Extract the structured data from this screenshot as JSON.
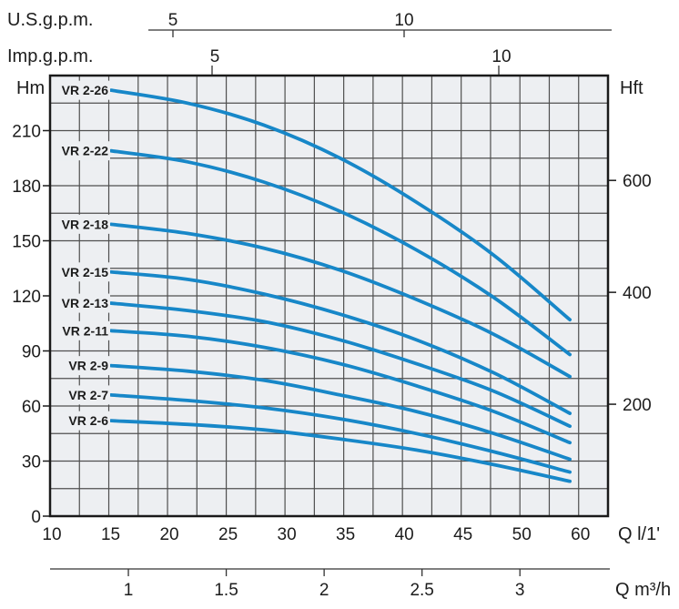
{
  "chart_data": {
    "type": "line",
    "title": "",
    "axes": {
      "us_gpm": {
        "label": "U.S.g.p.m.",
        "ticks": [
          5,
          10
        ]
      },
      "imp_gpm": {
        "label": "Imp.g.p.m.",
        "ticks": [
          5,
          10
        ]
      },
      "flow": {
        "label": "Q l/1'",
        "ticks": [
          10,
          15,
          20,
          25,
          30,
          35,
          40,
          45,
          50,
          60
        ]
      },
      "m3h": {
        "label": "Q m³/h",
        "ticks": [
          1,
          1.5,
          2,
          2.5,
          3
        ]
      },
      "left": {
        "label": "Hm",
        "ticks": [
          0,
          30,
          60,
          90,
          120,
          150,
          180,
          210
        ],
        "range": [
          0,
          240
        ],
        "grid_step_m": 15
      },
      "right": {
        "label": "Hft",
        "ticks": [
          200,
          400,
          600
        ]
      }
    },
    "grid": true,
    "legend_position": "on-curve-left",
    "q_lmin": [
      15.2,
      21.7,
      28.2,
      34.7,
      41.2,
      47.8,
      58.5
    ],
    "series": [
      {
        "name": "VR 2-26",
        "head_m": [
          232,
          225,
          213,
          195,
          171,
          142,
          107
        ]
      },
      {
        "name": "VR 2-22",
        "head_m": [
          199,
          193,
          182,
          166,
          145,
          119,
          88
        ]
      },
      {
        "name": "VR 2-18",
        "head_m": [
          159,
          154,
          146,
          134,
          118,
          99,
          76
        ]
      },
      {
        "name": "VR 2-15",
        "head_m": [
          133,
          129,
          121,
          110,
          96,
          78,
          56
        ]
      },
      {
        "name": "VR 2-13",
        "head_m": [
          116,
          112,
          106,
          96,
          83,
          68,
          49
        ]
      },
      {
        "name": "VR 2-11",
        "head_m": [
          101,
          98,
          92,
          83,
          71,
          57,
          40
        ]
      },
      {
        "name": "VR 2-9",
        "head_m": [
          82,
          79,
          74,
          66,
          57,
          45,
          31
        ]
      },
      {
        "name": "VR 2-7",
        "head_m": [
          66,
          63,
          59,
          53,
          45,
          35,
          24
        ]
      },
      {
        "name": "VR 2-6",
        "head_m": [
          52,
          50,
          47,
          42,
          36,
          28,
          19
        ]
      }
    ],
    "colors": {
      "curve": "#1787c8",
      "plot_bg": "#edeff2",
      "grid": "#4f4f4f",
      "border": "#1a1a1a",
      "text": "#1c1c1c"
    }
  }
}
